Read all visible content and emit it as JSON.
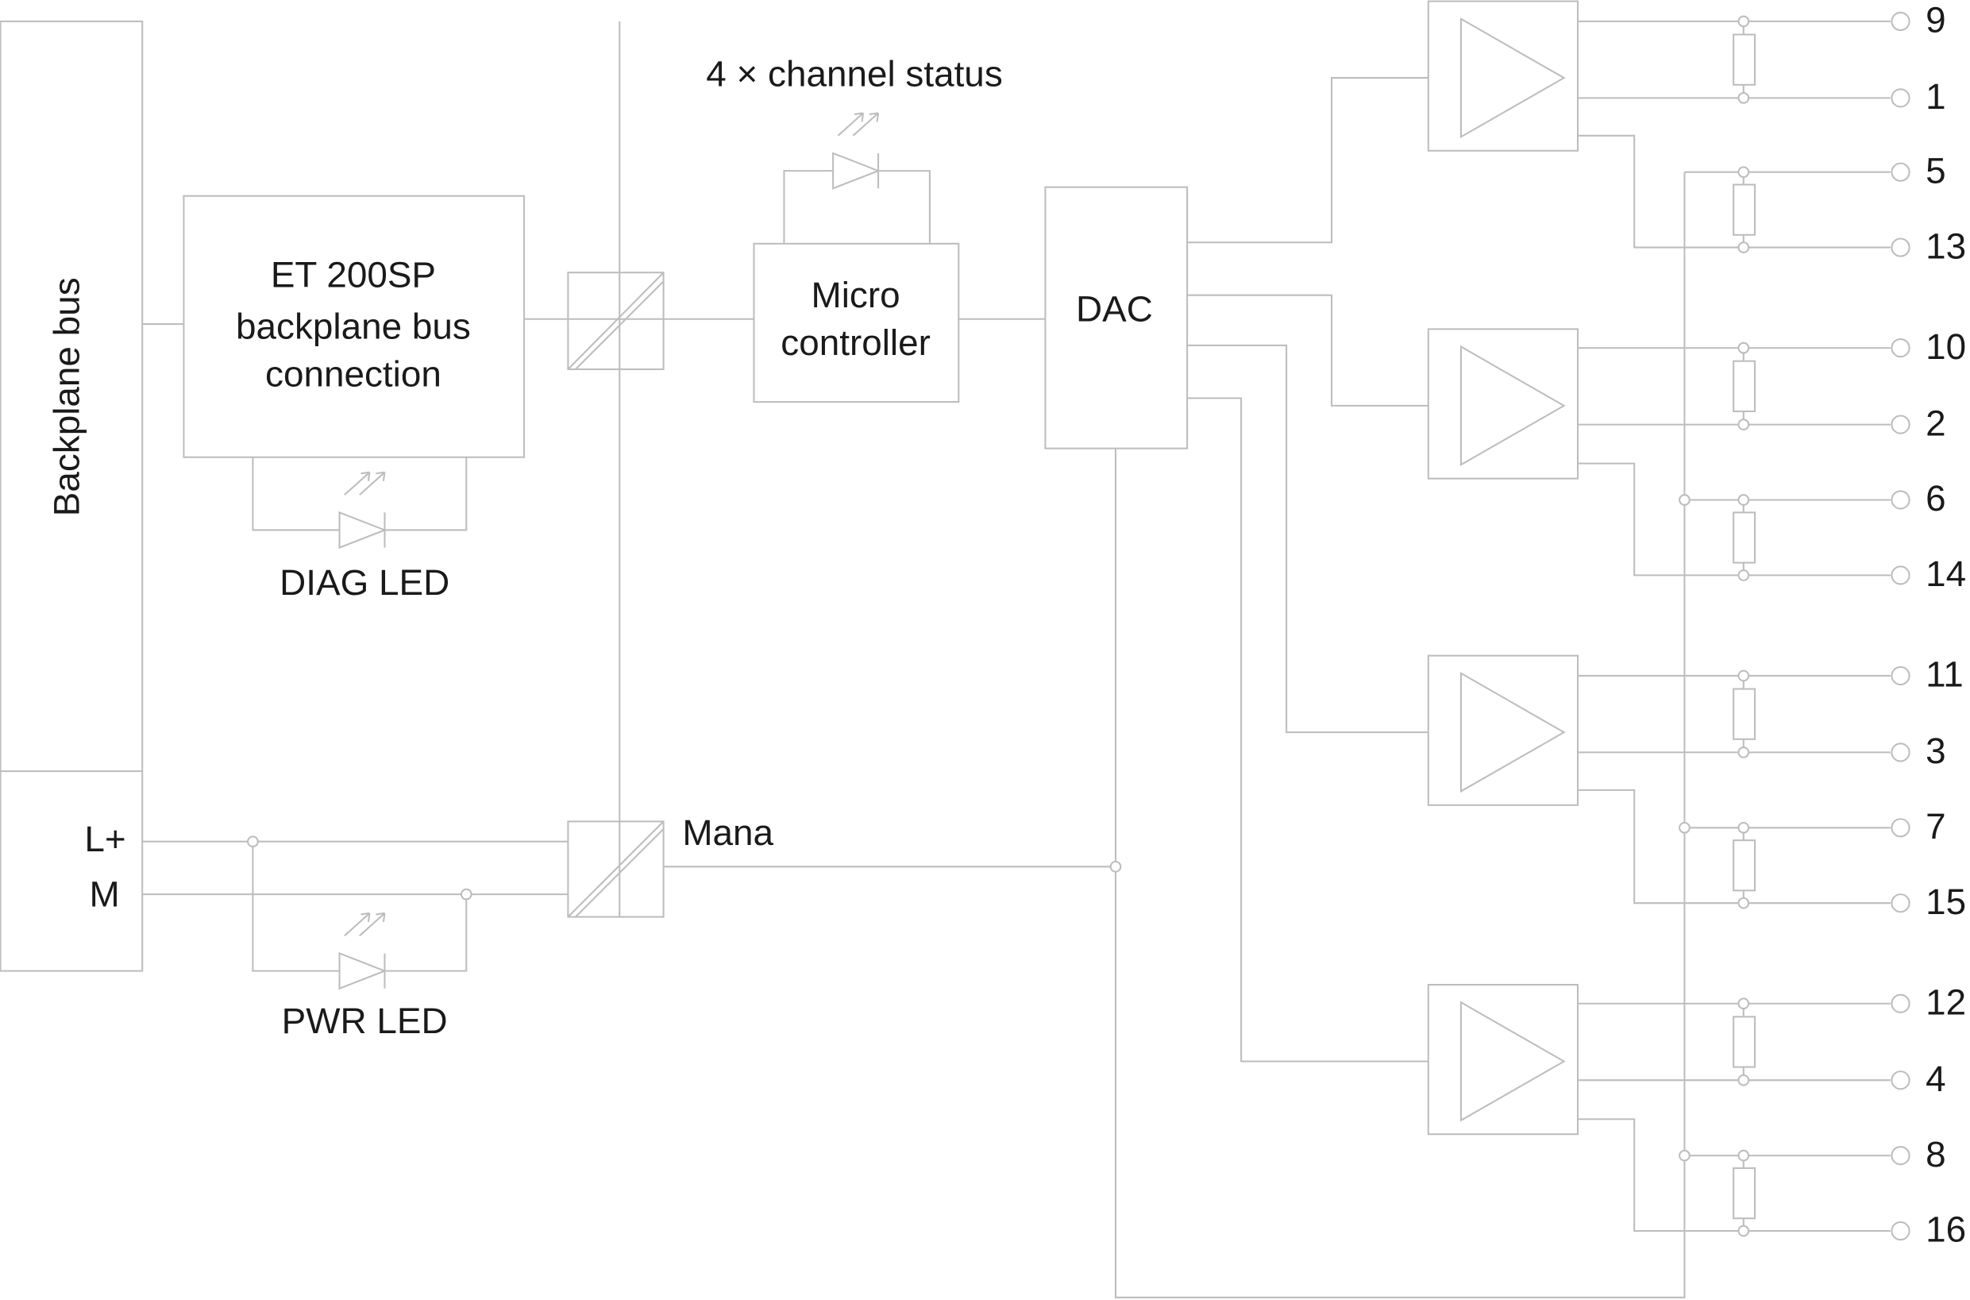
{
  "labels": {
    "backplane_bus": "Backplane bus",
    "et_line1": "ET 200SP",
    "et_line2": "backplane bus",
    "et_line3": "connection",
    "diag_led": "DIAG LED",
    "channel_status": "4 × channel status",
    "micro_line1": "Micro",
    "micro_line2": "controller",
    "dac": "DAC",
    "l_plus": "L+",
    "m": "M",
    "pwr_led": "PWR LED",
    "mana": "Mana"
  },
  "terminals": [
    "9",
    "1",
    "5",
    "13",
    "10",
    "2",
    "6",
    "14",
    "11",
    "3",
    "7",
    "15",
    "12",
    "4",
    "8",
    "16"
  ]
}
